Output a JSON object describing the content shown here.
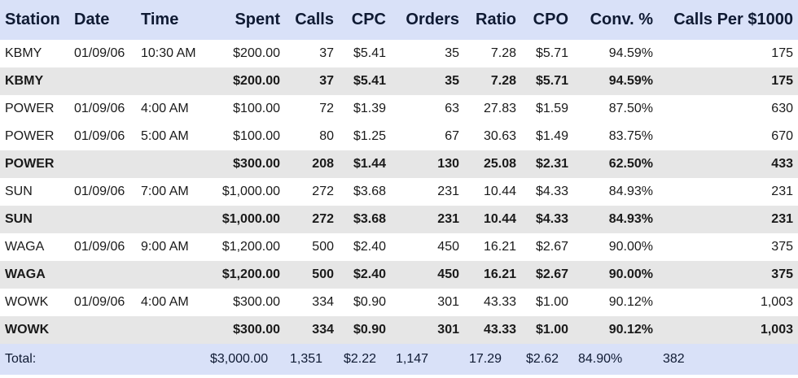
{
  "headers": [
    "Station",
    "Date",
    "Time",
    "Spent",
    "Calls",
    "CPC",
    "Orders",
    "Ratio",
    "CPO",
    "Conv. %",
    "Calls Per $1000"
  ],
  "rows": [
    {
      "type": "detail",
      "station": "KBMY",
      "date": "01/09/06",
      "time": "10:30 AM",
      "spent": "$200.00",
      "calls": "37",
      "cpc": "$5.41",
      "orders": "35",
      "ratio": "7.28",
      "cpo": "$5.71",
      "conv": "94.59%",
      "per1000": "175"
    },
    {
      "type": "subtotal",
      "station": "KBMY",
      "date": "",
      "time": "",
      "spent": "$200.00",
      "calls": "37",
      "cpc": "$5.41",
      "orders": "35",
      "ratio": "7.28",
      "cpo": "$5.71",
      "conv": "94.59%",
      "per1000": "175"
    },
    {
      "type": "detail",
      "station": "POWER",
      "date": "01/09/06",
      "time": "4:00 AM",
      "spent": "$100.00",
      "calls": "72",
      "cpc": "$1.39",
      "orders": "63",
      "ratio": "27.83",
      "cpo": "$1.59",
      "conv": "87.50%",
      "per1000": "630"
    },
    {
      "type": "detail",
      "station": "POWER",
      "date": "01/09/06",
      "time": "5:00 AM",
      "spent": "$100.00",
      "calls": "80",
      "cpc": "$1.25",
      "orders": "67",
      "ratio": "30.63",
      "cpo": "$1.49",
      "conv": "83.75%",
      "per1000": "670"
    },
    {
      "type": "subtotal",
      "station": "POWER",
      "date": "",
      "time": "",
      "spent": "$300.00",
      "calls": "208",
      "cpc": "$1.44",
      "orders": "130",
      "ratio": "25.08",
      "cpo": "$2.31",
      "conv": "62.50%",
      "per1000": "433"
    },
    {
      "type": "detail",
      "station": "SUN",
      "date": "01/09/06",
      "time": "7:00 AM",
      "spent": "$1,000.00",
      "calls": "272",
      "cpc": "$3.68",
      "orders": "231",
      "ratio": "10.44",
      "cpo": "$4.33",
      "conv": "84.93%",
      "per1000": "231"
    },
    {
      "type": "subtotal",
      "station": "SUN",
      "date": "",
      "time": "",
      "spent": "$1,000.00",
      "calls": "272",
      "cpc": "$3.68",
      "orders": "231",
      "ratio": "10.44",
      "cpo": "$4.33",
      "conv": "84.93%",
      "per1000": "231"
    },
    {
      "type": "detail",
      "station": "WAGA",
      "date": "01/09/06",
      "time": "9:00 AM",
      "spent": "$1,200.00",
      "calls": "500",
      "cpc": "$2.40",
      "orders": "450",
      "ratio": "16.21",
      "cpo": "$2.67",
      "conv": "90.00%",
      "per1000": "375"
    },
    {
      "type": "subtotal",
      "station": "WAGA",
      "date": "",
      "time": "",
      "spent": "$1,200.00",
      "calls": "500",
      "cpc": "$2.40",
      "orders": "450",
      "ratio": "16.21",
      "cpo": "$2.67",
      "conv": "90.00%",
      "per1000": "375"
    },
    {
      "type": "detail",
      "station": "WOWK",
      "date": "01/09/06",
      "time": "4:00 AM",
      "spent": "$300.00",
      "calls": "334",
      "cpc": "$0.90",
      "orders": "301",
      "ratio": "43.33",
      "cpo": "$1.00",
      "conv": "90.12%",
      "per1000": "1,003"
    },
    {
      "type": "subtotal",
      "station": "WOWK",
      "date": "",
      "time": "",
      "spent": "$300.00",
      "calls": "334",
      "cpc": "$0.90",
      "orders": "301",
      "ratio": "43.33",
      "cpo": "$1.00",
      "conv": "90.12%",
      "per1000": "1,003"
    }
  ],
  "total": {
    "station": "Total:",
    "date": "",
    "time": "",
    "spent": "$3,000.00",
    "calls": "1,351",
    "cpc": "$2.22",
    "orders": "1,147",
    "ratio": "17.29",
    "cpo": "$2.62",
    "conv": "84.90%",
    "per1000": "382"
  },
  "colors": {
    "header_bg": "#d9e1f8",
    "subtotal_bg": "#e6e6e6",
    "total_bg": "#d9e1f8"
  }
}
